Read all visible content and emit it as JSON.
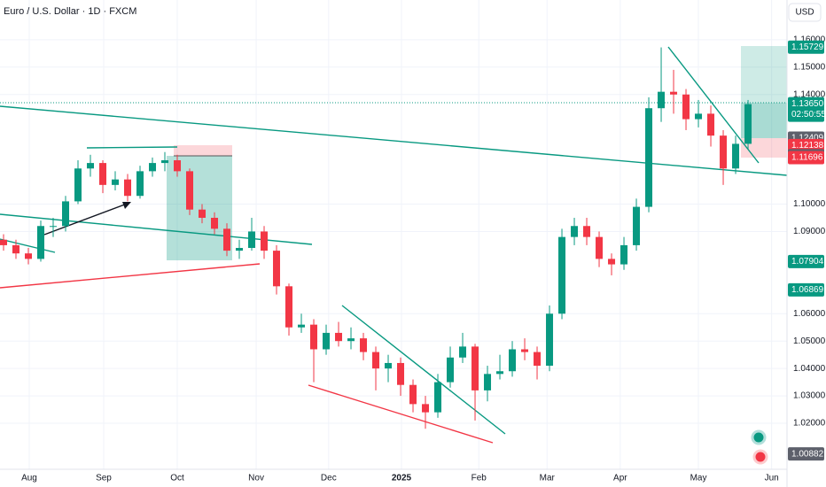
{
  "chart_data": {
    "type": "candlestick",
    "title": "Euro / U.S. Dollar · 1D · FXCM",
    "currency_button": "USD",
    "up_color": "#089981",
    "down_color": "#f23645",
    "xlim": [
      -0.286,
      63.14
    ],
    "ylim": [
      1.0032,
      1.1745
    ],
    "candles": [
      [
        1.087,
        1.089,
        1.083,
        1.085
      ],
      [
        1.085,
        1.087,
        1.08,
        1.082
      ],
      [
        1.082,
        1.084,
        1.078,
        1.08
      ],
      [
        1.08,
        1.094,
        1.079,
        1.092
      ],
      [
        1.092,
        1.095,
        1.088,
        1.092
      ],
      [
        1.092,
        1.103,
        1.09,
        1.101
      ],
      [
        1.101,
        1.116,
        1.1,
        1.113
      ],
      [
        1.113,
        1.118,
        1.11,
        1.115
      ],
      [
        1.115,
        1.116,
        1.104,
        1.107
      ],
      [
        1.107,
        1.112,
        1.105,
        1.109
      ],
      [
        1.109,
        1.111,
        1.101,
        1.103
      ],
      [
        1.103,
        1.114,
        1.102,
        1.112
      ],
      [
        1.112,
        1.117,
        1.11,
        1.115
      ],
      [
        1.115,
        1.119,
        1.112,
        1.116
      ],
      [
        1.116,
        1.118,
        1.11,
        1.112
      ],
      [
        1.112,
        1.113,
        1.096,
        1.098
      ],
      [
        1.098,
        1.1,
        1.093,
        1.095
      ],
      [
        1.095,
        1.097,
        1.089,
        1.091
      ],
      [
        1.091,
        1.093,
        1.081,
        1.083
      ],
      [
        1.083,
        1.087,
        1.08,
        1.084
      ],
      [
        1.084,
        1.095,
        1.083,
        1.09
      ],
      [
        1.09,
        1.092,
        1.08,
        1.083
      ],
      [
        1.083,
        1.085,
        1.067,
        1.07
      ],
      [
        1.07,
        1.071,
        1.052,
        1.055
      ],
      [
        1.055,
        1.06,
        1.053,
        1.056
      ],
      [
        1.056,
        1.058,
        1.035,
        1.047
      ],
      [
        1.047,
        1.056,
        1.045,
        1.053
      ],
      [
        1.053,
        1.057,
        1.048,
        1.05
      ],
      [
        1.05,
        1.055,
        1.047,
        1.051
      ],
      [
        1.051,
        1.053,
        1.043,
        1.046
      ],
      [
        1.046,
        1.048,
        1.032,
        1.04
      ],
      [
        1.04,
        1.045,
        1.035,
        1.042
      ],
      [
        1.042,
        1.044,
        1.03,
        1.034
      ],
      [
        1.034,
        1.036,
        1.024,
        1.027
      ],
      [
        1.027,
        1.03,
        1.018,
        1.024
      ],
      [
        1.024,
        1.038,
        1.022,
        1.035
      ],
      [
        1.035,
        1.048,
        1.033,
        1.044
      ],
      [
        1.044,
        1.053,
        1.042,
        1.048
      ],
      [
        1.048,
        1.049,
        1.021,
        1.032
      ],
      [
        1.032,
        1.041,
        1.028,
        1.038
      ],
      [
        1.038,
        1.045,
        1.036,
        1.039
      ],
      [
        1.039,
        1.05,
        1.037,
        1.047
      ],
      [
        1.047,
        1.051,
        1.043,
        1.046
      ],
      [
        1.046,
        1.048,
        1.036,
        1.041
      ],
      [
        1.041,
        1.063,
        1.039,
        1.06
      ],
      [
        1.06,
        1.091,
        1.058,
        1.088
      ],
      [
        1.088,
        1.095,
        1.085,
        1.092
      ],
      [
        1.092,
        1.095,
        1.085,
        1.088
      ],
      [
        1.088,
        1.09,
        1.077,
        1.08
      ],
      [
        1.08,
        1.082,
        1.074,
        1.078
      ],
      [
        1.078,
        1.088,
        1.076,
        1.085
      ],
      [
        1.085,
        1.102,
        1.083,
        1.099
      ],
      [
        1.099,
        1.139,
        1.097,
        1.135
      ],
      [
        1.135,
        1.1572,
        1.13,
        1.141
      ],
      [
        1.141,
        1.149,
        1.133,
        1.14
      ],
      [
        1.14,
        1.142,
        1.127,
        1.131
      ],
      [
        1.131,
        1.138,
        1.128,
        1.133
      ],
      [
        1.133,
        1.136,
        1.121,
        1.125
      ],
      [
        1.125,
        1.127,
        1.107,
        1.113
      ],
      [
        1.113,
        1.125,
        1.111,
        1.122
      ],
      [
        1.122,
        1.138,
        1.12,
        1.1365
      ]
    ],
    "xticks": [
      {
        "value": 2.07,
        "label": "Aug"
      },
      {
        "value": 8.07,
        "label": "Sep"
      },
      {
        "value": 14,
        "label": "Oct"
      },
      {
        "value": 20.36,
        "label": "Nov"
      },
      {
        "value": 26.2,
        "label": "Dec"
      },
      {
        "value": 32.07,
        "label": "2025"
      },
      {
        "value": 38.3,
        "label": "Feb"
      },
      {
        "value": 43.8,
        "label": "Mar"
      },
      {
        "value": 49.7,
        "label": "Apr"
      },
      {
        "value": 56,
        "label": "May"
      },
      {
        "value": 61.9,
        "label": "Jun"
      }
    ],
    "yticks": [
      {
        "value": 1.16,
        "label": "1.16000"
      },
      {
        "value": 1.15,
        "label": "1.15000"
      },
      {
        "value": 1.14,
        "label": "1.14000"
      },
      {
        "value": 1.1,
        "label": "1.10000"
      },
      {
        "value": 1.09,
        "label": "1.09000"
      },
      {
        "value": 1.06,
        "label": "1.06000"
      },
      {
        "value": 1.05,
        "label": "1.05000"
      },
      {
        "value": 1.04,
        "label": "1.04000"
      },
      {
        "value": 1.03,
        "label": "1.03000"
      },
      {
        "value": 1.02,
        "label": "1.02000"
      }
    ],
    "price_labels": [
      {
        "value": 1.15729,
        "label": "1.15729",
        "color": "#089981"
      },
      {
        "value": 1.1365,
        "label": "1.13650",
        "color": "#089981",
        "countdown": "02:50:55"
      },
      {
        "value": 1.12409,
        "label": "1.12409",
        "color": "#5d606b"
      },
      {
        "value": 1.12138,
        "label": "1.12138",
        "color": "#f23645"
      },
      {
        "value": 1.11764,
        "label": "1.11764",
        "color": "#5d606b"
      },
      {
        "value": 1.11696,
        "label": "1.11696",
        "color": "#f23645"
      },
      {
        "value": 1.07904,
        "label": "1.07904",
        "color": "#089981"
      },
      {
        "value": 1.06869,
        "label": "1.06869",
        "color": "#089981"
      },
      {
        "value": 1.00882,
        "label": "1.00882",
        "color": "#5d606b"
      }
    ]
  }
}
